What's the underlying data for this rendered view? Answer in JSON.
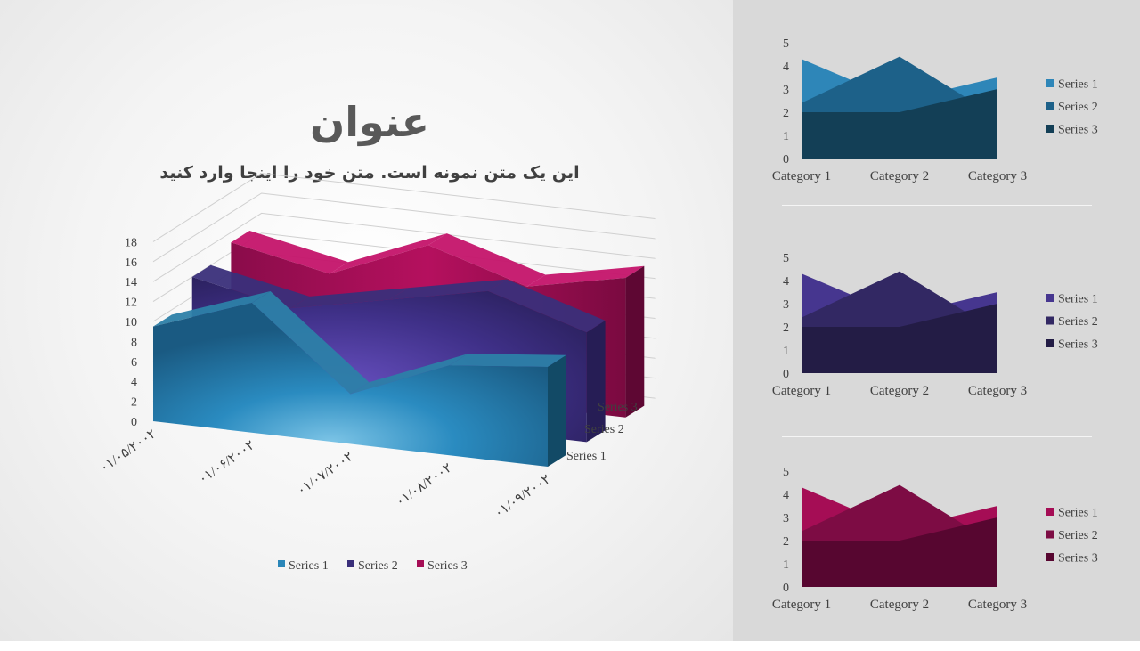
{
  "slide": {
    "title": "عنوان",
    "subtitle": "این یک متن نمونه است. متن خود را اینجا وارد کنید"
  },
  "colors": {
    "left_bg": "#f2f2f2",
    "right_bg": "#d9d9d9",
    "blue": [
      "#2e86b8",
      "#1d6189",
      "#133f56"
    ],
    "purple": [
      "#46368f",
      "#322863",
      "#231c45"
    ],
    "magenta": [
      "#a50d55",
      "#7d0c44",
      "#570630"
    ]
  },
  "chart_data": [
    {
      "type": "area",
      "variant": "3d",
      "categories": [
        "۰۱/۰۵/۲۰۰۲",
        "۰۱/۰۶/۲۰۰۲",
        "۰۱/۰۷/۲۰۰۲",
        "۰۱/۰۸/۲۰۰۲",
        "۰۱/۰۹/۲۰۰۲"
      ],
      "y_ticks": [
        "0",
        "2",
        "4",
        "6",
        "8",
        "10",
        "12",
        "14",
        "16",
        "18"
      ],
      "ylim": [
        0,
        18
      ],
      "series": [
        {
          "name": "Series 1",
          "values": [
            9.5,
            13,
            5,
            9,
            10
          ]
        },
        {
          "name": "Series 2",
          "values": [
            12,
            10,
            12,
            14,
            11
          ]
        },
        {
          "name": "Series 3",
          "values": [
            13,
            11,
            15,
            12,
            14
          ]
        }
      ],
      "legend": "bottom",
      "grid": true
    },
    {
      "type": "area",
      "categories": [
        "Category 1",
        "Category 2",
        "Category 3"
      ],
      "y_ticks": [
        "0",
        "1",
        "2",
        "3",
        "4",
        "5"
      ],
      "ylim": [
        0,
        5
      ],
      "series": [
        {
          "name": "Series 1",
          "values": [
            4.3,
            2.5,
            3.5
          ]
        },
        {
          "name": "Series 2",
          "values": [
            2.4,
            4.4,
            1.8
          ]
        },
        {
          "name": "Series 3",
          "values": [
            2,
            2,
            3
          ]
        }
      ],
      "legend": "right",
      "palette": "blue"
    },
    {
      "type": "area",
      "categories": [
        "Category 1",
        "Category 2",
        "Category 3"
      ],
      "y_ticks": [
        "0",
        "1",
        "2",
        "3",
        "4",
        "5"
      ],
      "ylim": [
        0,
        5
      ],
      "series": [
        {
          "name": "Series 1",
          "values": [
            4.3,
            2.5,
            3.5
          ]
        },
        {
          "name": "Series 2",
          "values": [
            2.4,
            4.4,
            1.8
          ]
        },
        {
          "name": "Series 3",
          "values": [
            2,
            2,
            3
          ]
        }
      ],
      "legend": "right",
      "palette": "purple"
    },
    {
      "type": "area",
      "categories": [
        "Category 1",
        "Category 2",
        "Category 3"
      ],
      "y_ticks": [
        "0",
        "1",
        "2",
        "3",
        "4",
        "5"
      ],
      "ylim": [
        0,
        5
      ],
      "series": [
        {
          "name": "Series 1",
          "values": [
            4.3,
            2.5,
            3.5
          ]
        },
        {
          "name": "Series 2",
          "values": [
            2.4,
            4.4,
            1.8
          ]
        },
        {
          "name": "Series 3",
          "values": [
            2,
            2,
            3
          ]
        }
      ],
      "legend": "right",
      "palette": "magenta"
    }
  ]
}
